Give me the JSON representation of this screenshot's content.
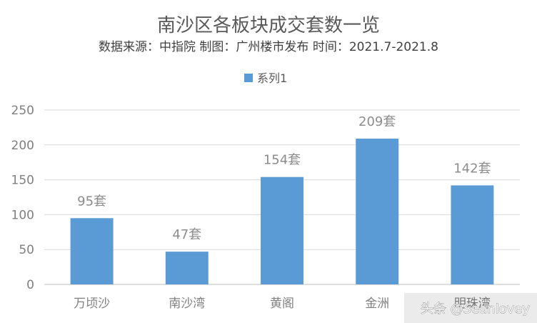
{
  "chart_data": {
    "type": "bar",
    "title": "南沙区各板块成交套数一览",
    "subtitle": "数据来源：中指院 制图：广州楼市发布 时间：2021.7-2021.8",
    "legend": {
      "position": "top",
      "entries": [
        "系列1"
      ]
    },
    "categories": [
      "万顷沙",
      "南沙湾",
      "黄阁",
      "金洲",
      "明珠湾"
    ],
    "series": [
      {
        "name": "系列1",
        "values": [
          95,
          47,
          154,
          209,
          142
        ],
        "color": "#5b9bd5"
      }
    ],
    "data_labels": [
      "95套",
      "47套",
      "154套",
      "209套",
      "142套"
    ],
    "yticks": [
      "0",
      "50",
      "100",
      "150",
      "200",
      "250"
    ],
    "ylim": [
      0,
      250
    ],
    "xlabel": "",
    "ylabel": "",
    "grid": true
  },
  "watermark": "头条 @Seanlovey",
  "colors": {
    "bar": "#5b9bd5",
    "grid": "#d9d9d9",
    "axis": "#bfbfbf"
  }
}
